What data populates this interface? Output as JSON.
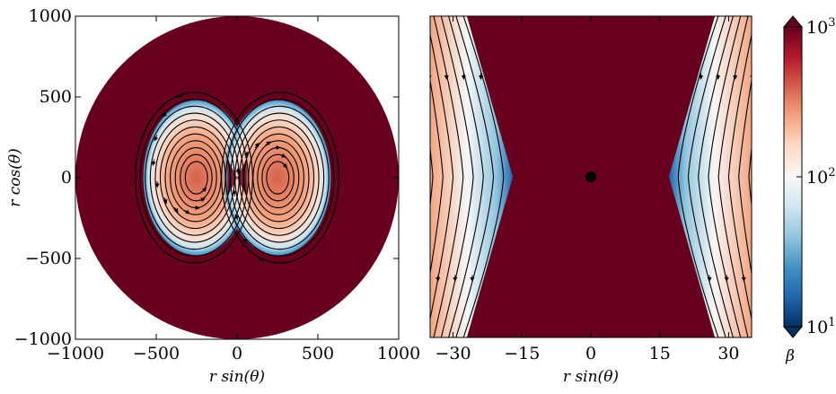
{
  "chart_data": [
    {
      "type": "heatmap",
      "panel": "left",
      "title": "",
      "xlabel": "r sin(θ)",
      "ylabel": "r cos(θ)",
      "xlim": [
        -1000,
        1000
      ],
      "ylim": [
        -1000,
        1000
      ],
      "xticks": [
        "−1000",
        "−500",
        "0",
        "500",
        "1000"
      ],
      "yticks": [
        "1000",
        "500",
        "0",
        "−500",
        "−1000"
      ],
      "x_tick_values": [
        -1000,
        -500,
        0,
        500,
        1000
      ],
      "y_tick_values": [
        1000,
        500,
        0,
        -500,
        -1000
      ],
      "domain_radius": 1000,
      "background_beta": 1000,
      "lobes": [
        {
          "center_x": -250,
          "center_y": 0,
          "semi_x": 330,
          "semi_y": 480,
          "beta_core": 110,
          "beta_edge": 40
        },
        {
          "center_x": 250,
          "center_y": 0,
          "semi_x": 330,
          "semi_y": 480,
          "beta_core": 110,
          "beta_edge": 40
        }
      ],
      "field_lines": "closed loops around each lobe"
    },
    {
      "type": "heatmap",
      "panel": "right",
      "title": "",
      "xlabel": "r sin(θ)",
      "ylabel": "",
      "xlim": [
        -35,
        35
      ],
      "ylim": [
        -35,
        35
      ],
      "xticks": [
        "−30",
        "−15",
        "0",
        "15",
        "30"
      ],
      "x_tick_values": [
        -30,
        -15,
        0,
        15,
        30
      ],
      "central_dot": {
        "x": 0,
        "y": 0
      },
      "background_beta": 1000,
      "boundary": {
        "equator_abs_x": 17,
        "pole_abs_x": 27
      },
      "field_lines": "open lines curving around the central region"
    }
  ],
  "colorbar": {
    "label": "β",
    "scale": "log",
    "range": [
      10,
      1000
    ],
    "ticks": [
      {
        "base": "10",
        "exp": "3",
        "value": 1000
      },
      {
        "base": "10",
        "exp": "2",
        "value": 100
      },
      {
        "base": "10",
        "exp": "1",
        "value": 10
      }
    ],
    "colormap": [
      "#053061",
      "#2166ac",
      "#4393c3",
      "#92c5de",
      "#d1e5f0",
      "#f7f7f7",
      "#fddbc7",
      "#f4a582",
      "#d6604d",
      "#b2182b",
      "#67001f"
    ]
  }
}
